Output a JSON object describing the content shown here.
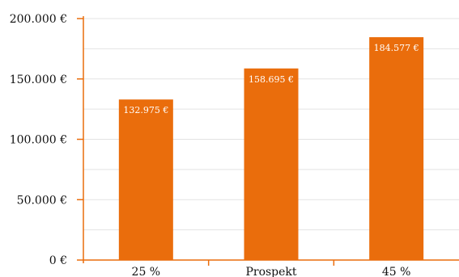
{
  "chart_data": {
    "type": "bar",
    "categories": [
      "25 %",
      "Prospekt",
      "45 %"
    ],
    "values": [
      132975,
      158695,
      184577
    ],
    "data_labels": [
      "132.975 €",
      "158.695 €",
      "184.577 €"
    ],
    "y_ticks": [
      0,
      50000,
      100000,
      150000,
      200000
    ],
    "y_tick_labels": [
      "0 €",
      "50.000 €",
      "100.000 €",
      "150.000 €",
      "200.000 €"
    ],
    "ylim": [
      0,
      200000
    ],
    "minor_grid_step": 25000,
    "grid": true,
    "colors": {
      "bar": "#ea6d0c",
      "axis": "#ea6d0c",
      "grid": "#e3e3e3",
      "text": "#111111",
      "label": "#ffffff"
    }
  }
}
